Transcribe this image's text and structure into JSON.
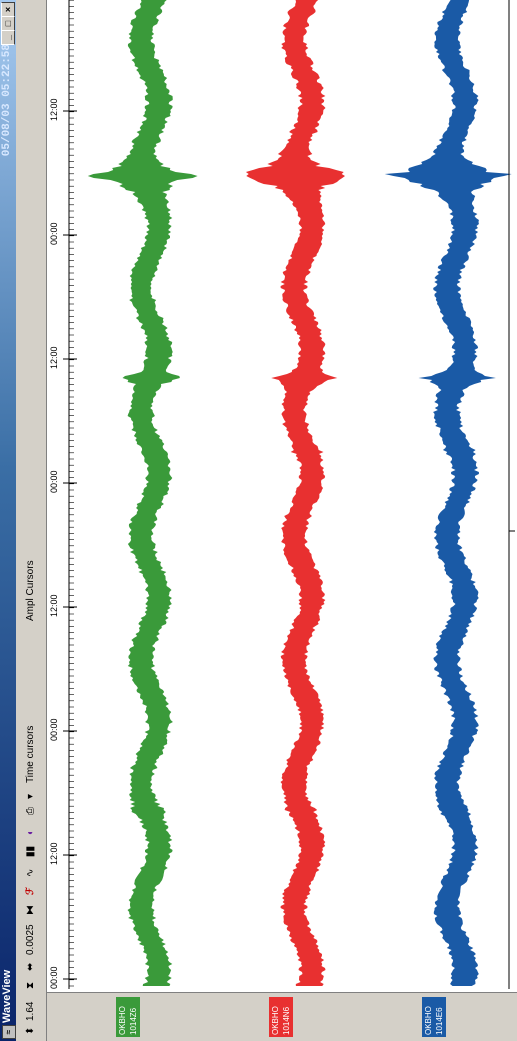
{
  "window": {
    "title": "WaveView",
    "datetime": "05/08/03 05:22:58",
    "buttons": {
      "minimize": "_",
      "maximize": "□",
      "close": "×"
    }
  },
  "toolbar": {
    "zoom_value": "1.64",
    "scale_value": "0.0025",
    "time_cursors_label": "Time cursors",
    "ampl_cursors_label": "Ampl Cursors"
  },
  "time_axis": {
    "labels": [
      "00:00",
      "12:00",
      "00:00",
      "12:00",
      "00:00",
      "12:00",
      "00:00",
      "12:00",
      "00:00"
    ]
  },
  "channels": [
    {
      "label_line1": "OKBHO",
      "label_line2": "1014Z6",
      "color": "#3a9a3a"
    },
    {
      "label_line1": "OKBHO",
      "label_line2": "1014N6",
      "color": "#e83030"
    },
    {
      "label_line1": "OKBHO",
      "label_line2": "1014E6",
      "color": "#1a5aa6"
    }
  ],
  "colors": {
    "titlebar": "#0a246a",
    "panel": "#d4d0c8"
  }
}
